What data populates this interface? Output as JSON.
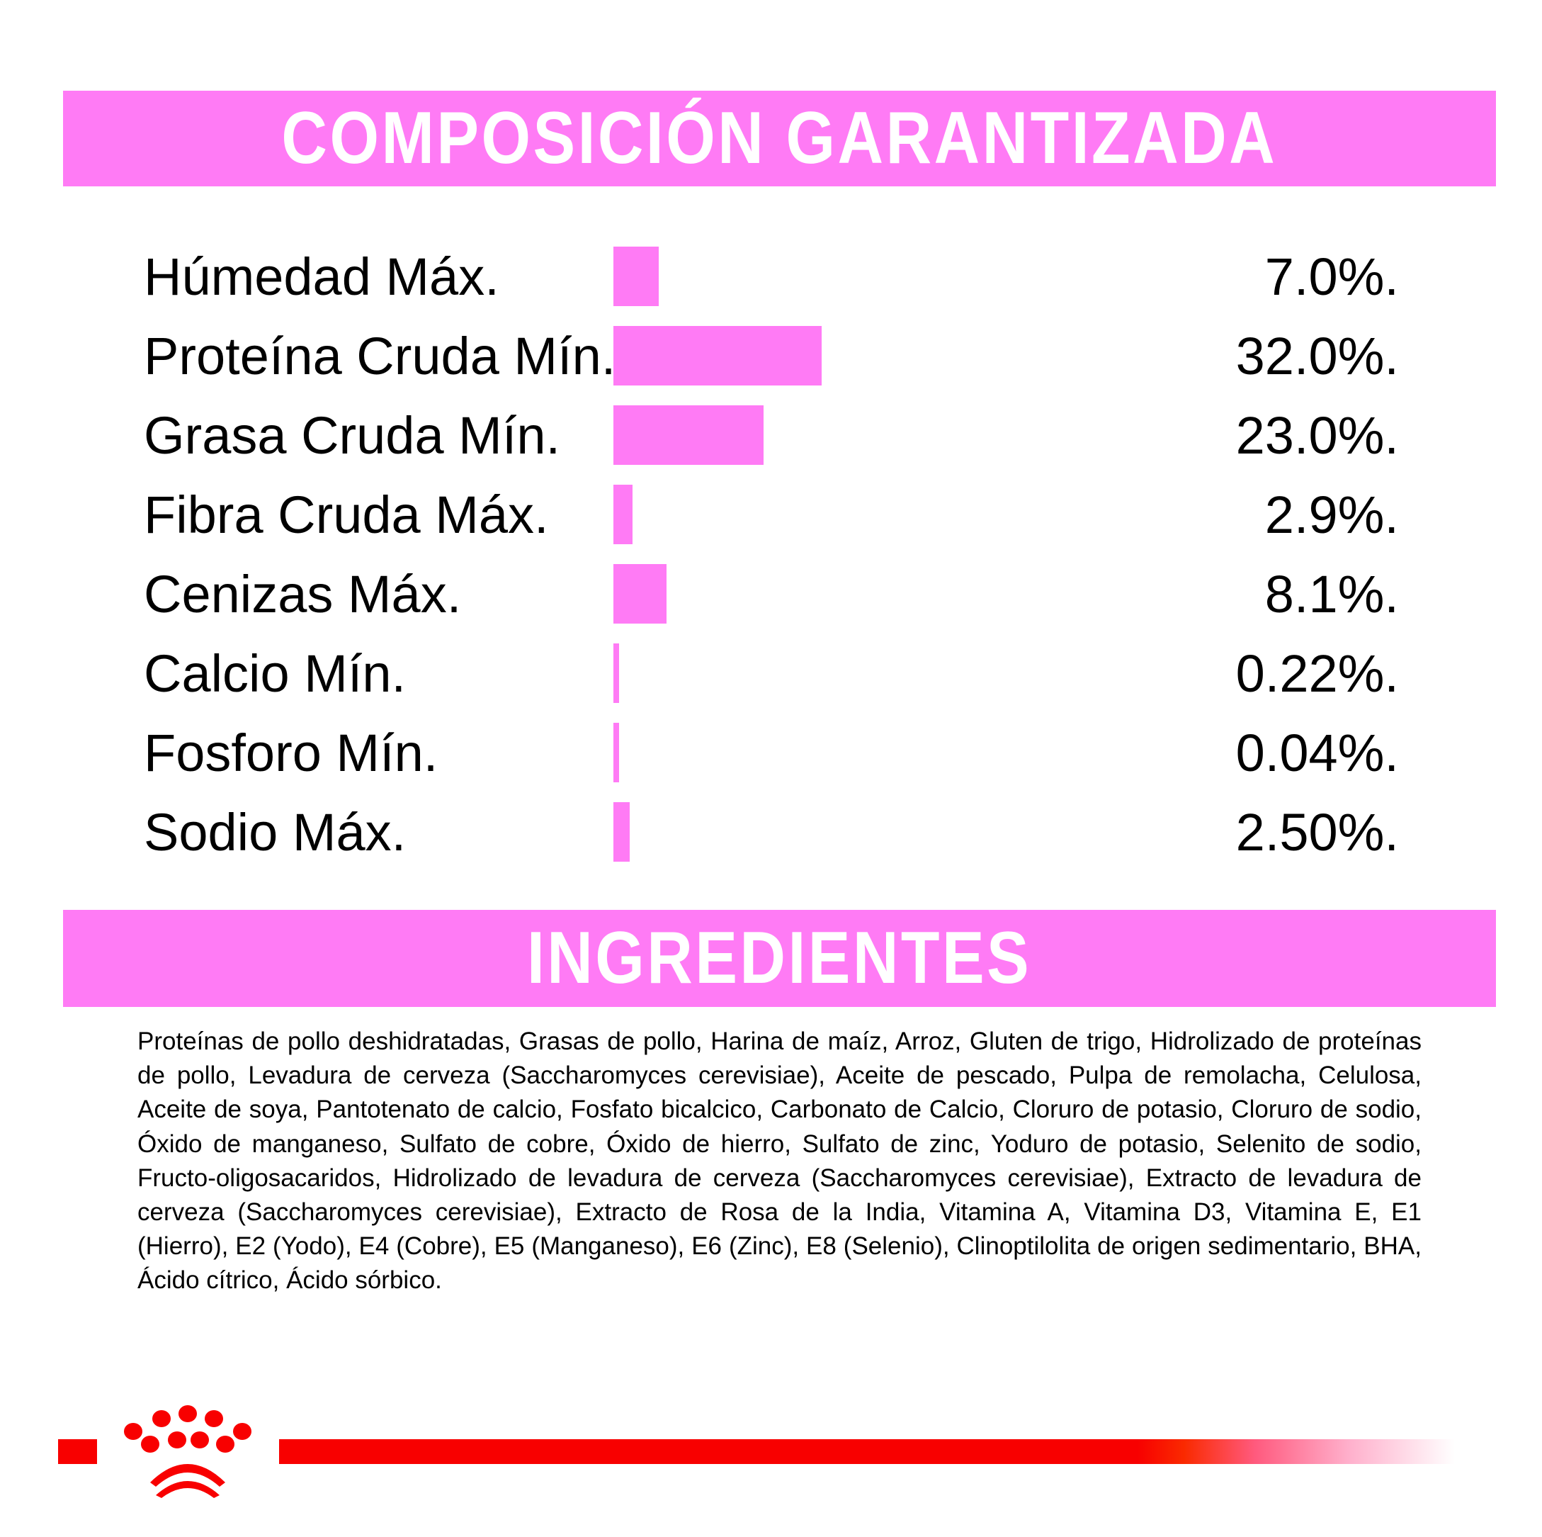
{
  "composition": {
    "title": "COMPOSICIÓN GARANTIZADA",
    "accent_color": "#ff7bf5",
    "rows": [
      {
        "label": "Húmedad Máx.",
        "value": "7.0%.",
        "percent": 7.0
      },
      {
        "label": "Proteína Cruda Mín.",
        "value": "32.0%.",
        "percent": 32.0
      },
      {
        "label": "Grasa Cruda Mín.",
        "value": "23.0%.",
        "percent": 23.0
      },
      {
        "label": "Fibra Cruda Máx.",
        "value": "2.9%.",
        "percent": 2.9
      },
      {
        "label": "Cenizas Máx.",
        "value": "8.1%.",
        "percent": 8.1
      },
      {
        "label": "Calcio Mín.",
        "value": "0.22%.",
        "percent": 0.22
      },
      {
        "label": "Fosforo Mín.",
        "value": "0.04%.",
        "percent": 0.04
      },
      {
        "label": "Sodio Máx.",
        "value": "2.50%.",
        "percent": 2.5
      }
    ]
  },
  "ingredients": {
    "title": "INGREDIENTES",
    "text": "Proteínas de pollo deshidratadas, Grasas  de pollo, Harina de maíz, Arroz, Gluten de trigo, Hidrolizado de proteínas de pollo, Levadura de cerveza (Saccharomyces cerevisiae), Aceite de pescado, Pulpa de remolacha, Celulosa, Aceite de soya, Pantotenato de calcio, Fosfato bicalcico, Carbonato de Calcio, Cloruro de potasio, Cloruro de sodio, Óxido de manganeso, Sulfato de cobre, Óxido de hierro, Sulfato de zinc, Yoduro de potasio, Selenito de sodio, Fructo-oligosacaridos, Hidrolizado de levadura de cerveza (Saccharomyces cerevisiae), Extracto de levadura de cerveza (Saccharomyces cerevisiae), Extracto de Rosa de la India, Vitamina A, Vitamina D3, Vitamina E, E1 (Hierro), E2 (Yodo), E4 (Cobre), E5 (Manganeso), E6 (Zinc), E8 (Selenio), Clinoptilolita de origen sedimentario, BHA, Ácido cítrico, Ácido sórbico."
  },
  "footer": {
    "brand_color": "#f80000",
    "logo_icon": "paw-crown-icon"
  }
}
